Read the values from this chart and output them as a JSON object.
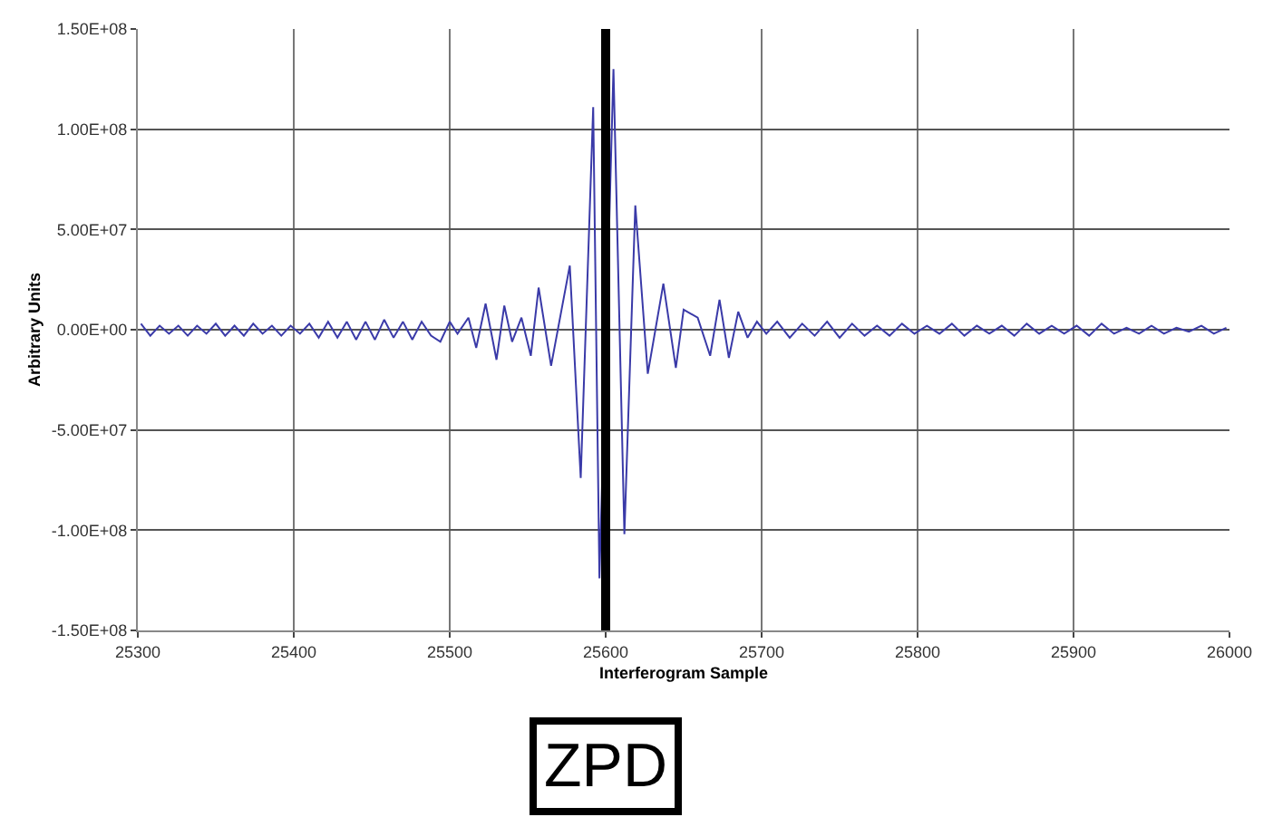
{
  "chart_data": {
    "type": "line",
    "xlabel": "Interferogram Sample",
    "ylabel": "Arbitrary Units",
    "x": [
      25302,
      25308,
      25314,
      25320,
      25326,
      25332,
      25338,
      25344,
      25350,
      25356,
      25362,
      25368,
      25374,
      25380,
      25386,
      25392,
      25398,
      25404,
      25410,
      25416,
      25422,
      25428,
      25434,
      25440,
      25446,
      25452,
      25458,
      25464,
      25470,
      25476,
      25482,
      25488,
      25494,
      25500,
      25505,
      25512,
      25517,
      25523,
      25530,
      25535,
      25540,
      25546,
      25552,
      25557,
      25565,
      25577,
      25584,
      25592,
      25596,
      25605,
      25612,
      25619,
      25627,
      25637,
      25645,
      25650,
      25659,
      25667,
      25673,
      25679,
      25685,
      25691,
      25697,
      25703,
      25710,
      25718,
      25726,
      25734,
      25742,
      25750,
      25758,
      25766,
      25774,
      25782,
      25790,
      25798,
      25806,
      25814,
      25822,
      25830,
      25838,
      25846,
      25854,
      25862,
      25870,
      25878,
      25886,
      25894,
      25902,
      25910,
      25918,
      25926,
      25934,
      25942,
      25950,
      25958,
      25966,
      25974,
      25982,
      25990,
      25998
    ],
    "series": [
      {
        "color": "#3a3aa8",
        "values": [
          3000000,
          -3000000,
          2000000,
          -2000000,
          2000000,
          -3000000,
          2000000,
          -2000000,
          3000000,
          -3000000,
          2000000,
          -3000000,
          3000000,
          -2000000,
          2000000,
          -3000000,
          2000000,
          -2000000,
          3000000,
          -4000000,
          4000000,
          -4000000,
          4000000,
          -5000000,
          4000000,
          -5000000,
          5000000,
          -4000000,
          4000000,
          -5000000,
          4000000,
          -3000000,
          -6000000,
          4000000,
          -2000000,
          6000000,
          -9000000,
          13000000,
          -15000000,
          12000000,
          -6000000,
          6000000,
          -13000000,
          21000000,
          -18000000,
          32000000,
          -74000000,
          111000000,
          -124000000,
          130000000,
          -102000000,
          62000000,
          -22000000,
          23000000,
          -19000000,
          10000000,
          6000000,
          -13000000,
          15000000,
          -14000000,
          9000000,
          -4000000,
          4000000,
          -2000000,
          4000000,
          -4000000,
          3000000,
          -3000000,
          4000000,
          -4000000,
          3000000,
          -3000000,
          2000000,
          -3000000,
          3000000,
          -2000000,
          2000000,
          -2000000,
          3000000,
          -3000000,
          2000000,
          -2000000,
          2000000,
          -3000000,
          3000000,
          -2000000,
          2000000,
          -2000000,
          2000000,
          -3000000,
          3000000,
          -2000000,
          1000000,
          -2000000,
          2000000,
          -2000000,
          1000000,
          -1000000,
          2000000,
          -2000000,
          1000000
        ]
      }
    ],
    "xlim": [
      25300,
      26000
    ],
    "xticks": [
      25300,
      25400,
      25500,
      25600,
      25700,
      25800,
      25900,
      26000
    ],
    "ylim": [
      -150000000,
      150000000
    ],
    "yticks": [
      {
        "value": -150000000,
        "label": "-1.50E+08"
      },
      {
        "value": -100000000,
        "label": "-1.00E+08"
      },
      {
        "value": -50000000,
        "label": "-5.00E+07"
      },
      {
        "value": 0,
        "label": "0.00E+00"
      },
      {
        "value": 50000000,
        "label": "5.00E+07"
      },
      {
        "value": 100000000,
        "label": "1.00E+08"
      },
      {
        "value": 150000000,
        "label": "1.50E+08"
      }
    ],
    "grid": true,
    "marker": "none",
    "line_style": "solid",
    "ref_lines": [
      {
        "axis": "x",
        "value": 25600,
        "label": "ZPD",
        "color": "#000000"
      }
    ]
  }
}
